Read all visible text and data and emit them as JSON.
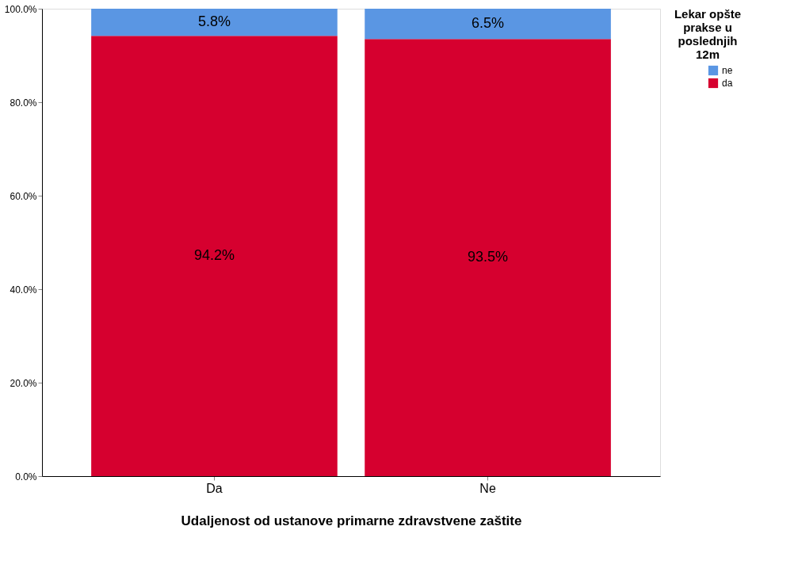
{
  "chart_data": {
    "type": "bar",
    "stacked": true,
    "xlabel": "Udaljenost od ustanove primarne zdravstvene zaštite",
    "legend_title": "Lekar opšte prakse u poslednjih 12m",
    "legend": "top right",
    "categories": [
      "Da",
      "Ne"
    ],
    "series": [
      {
        "name": "da",
        "color": "#d6002f",
        "values": [
          94.2,
          93.5
        ],
        "value_labels": [
          "94.2%",
          "93.5%"
        ]
      },
      {
        "name": "ne",
        "color": "#5a96e3",
        "values": [
          5.8,
          6.5
        ],
        "value_labels": [
          "5.8%",
          "6.5%"
        ]
      }
    ],
    "ylim": [
      0,
      100
    ],
    "yticks": [
      {
        "value": 0,
        "label": "0.0%"
      },
      {
        "value": 20,
        "label": "20.0%"
      },
      {
        "value": 40,
        "label": "40.0%"
      },
      {
        "value": 60,
        "label": "60.0%"
      },
      {
        "value": 80,
        "label": "80.0%"
      },
      {
        "value": 100,
        "label": "100.0%"
      }
    ],
    "grid": false
  }
}
